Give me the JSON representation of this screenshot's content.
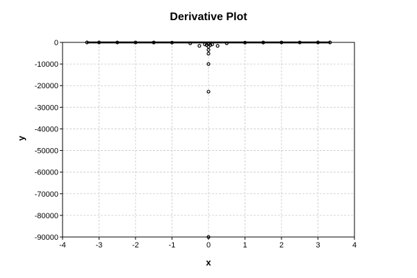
{
  "chart_data": {
    "type": "scatter",
    "title": "Derivative Plot",
    "xlabel": "x",
    "ylabel": "y",
    "xlim": [
      -4,
      4
    ],
    "ylim": [
      -90000,
      0
    ],
    "xticks": [
      -4,
      -3,
      -2,
      -1,
      0,
      1,
      2,
      3,
      4
    ],
    "yticks": [
      0,
      -10000,
      -20000,
      -30000,
      -40000,
      -50000,
      -60000,
      -70000,
      -80000,
      -90000
    ],
    "grid": true,
    "legend": "none",
    "series": [
      {
        "marker": "circle",
        "color": "#000000",
        "x": [
          -3.33,
          -3.0,
          -2.5,
          -2.0,
          -1.5,
          -1.0,
          -0.5,
          -0.25,
          -0.1,
          -0.05,
          0.0,
          0.0,
          0.0,
          0.0,
          0.0,
          0.0,
          0.0,
          0.05,
          0.1,
          0.25,
          0.5,
          1.0,
          1.5,
          2.0,
          2.5,
          3.0,
          3.33
        ],
        "y": [
          -10,
          -12,
          -16,
          -25,
          -44,
          -100,
          -400,
          -1600,
          -900,
          -1200,
          -700,
          -2000,
          -3500,
          -5200,
          -10000,
          -22800,
          -90000,
          -1200,
          -900,
          -1600,
          -400,
          -100,
          -44,
          -25,
          -16,
          -12,
          -10
        ]
      }
    ]
  }
}
